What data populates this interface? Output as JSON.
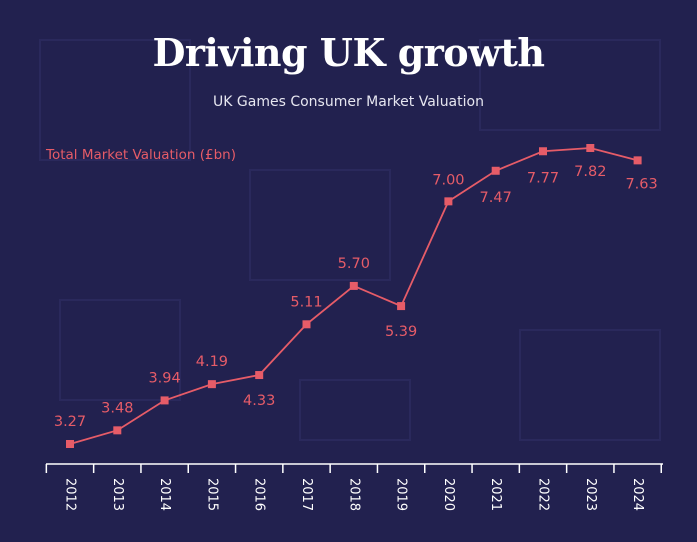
{
  "header": {
    "title": "Driving UK growth",
    "subtitle": "UK Games Consumer Market Valuation"
  },
  "colors": {
    "background": "#22214f",
    "accent": "#e65c68",
    "axis": "#ffffff"
  },
  "chart_data": {
    "type": "line",
    "title": "Driving UK growth",
    "subtitle": "UK Games Consumer Market Valuation",
    "xlabel": "",
    "ylabel": "",
    "categories": [
      "2012",
      "2013",
      "2014",
      "2015",
      "2016",
      "2017",
      "2018",
      "2019",
      "2020",
      "2021",
      "2022",
      "2023",
      "2024"
    ],
    "series": [
      {
        "name": "Total Market Valuation (£bn)",
        "values": [
          3.27,
          3.48,
          3.94,
          4.19,
          4.33,
          5.11,
          5.7,
          5.39,
          7.0,
          7.47,
          7.77,
          7.82,
          7.63
        ],
        "labels": [
          "3.27",
          "3.48",
          "3.94",
          "4.19",
          "4.33",
          "5.11",
          "5.70",
          "5.39",
          "7.00",
          "7.47",
          "7.77",
          "7.82",
          "7.63"
        ]
      }
    ],
    "grid": false,
    "legend": "top-left"
  }
}
